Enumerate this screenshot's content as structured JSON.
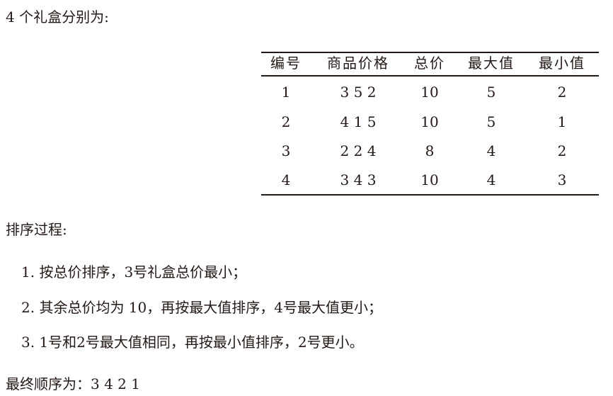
{
  "intro": "4 个礼盒分别为:",
  "table": {
    "headers": [
      "编号",
      "商品价格",
      "总价",
      "最大值",
      "最小值"
    ],
    "rows": [
      [
        "1",
        "3 5 2",
        "10",
        "5",
        "2"
      ],
      [
        "2",
        "4 1 5",
        "10",
        "5",
        "1"
      ],
      [
        "3",
        "2 2 4",
        "8",
        "4",
        "2"
      ],
      [
        "4",
        "3 4 3",
        "10",
        "4",
        "3"
      ]
    ]
  },
  "process_title": "排序过程:",
  "steps": [
    "1. 按总价排序，3号礼盒总价最小；",
    "2. 其余总价均为 10，再按最大值排序，4号最大值更小；",
    "3. 1号和2号最大值相同，再按最小值排序，2号更小。"
  ],
  "result": "最终顺序为：3 4 2 1"
}
